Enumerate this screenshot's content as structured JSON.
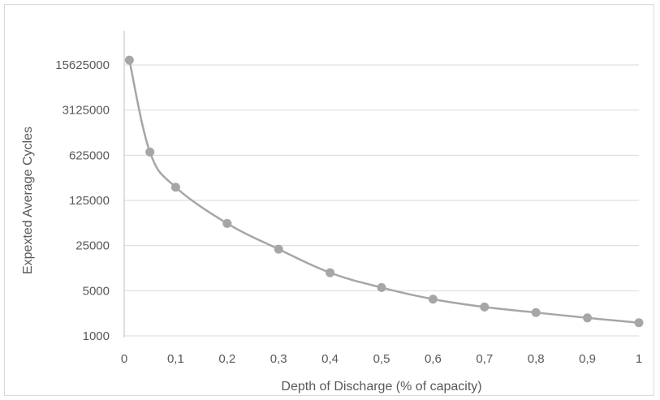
{
  "chart_data": {
    "type": "line",
    "title": "",
    "xlabel": "Depth of Discharge (% of capacity)",
    "ylabel": "Expexted Average Cycles",
    "y_scale": "log",
    "x_ticks": [
      "0",
      "0,1",
      "0,2",
      "0,3",
      "0,4",
      "0,5",
      "0,6",
      "0,7",
      "0,8",
      "0,9",
      "1"
    ],
    "x_tick_values": [
      0,
      0.1,
      0.2,
      0.3,
      0.4,
      0.5,
      0.6,
      0.7,
      0.8,
      0.9,
      1
    ],
    "y_ticks": [
      "1000",
      "5000",
      "25000",
      "125000",
      "625000",
      "3125000",
      "15625000"
    ],
    "y_tick_values": [
      1000,
      5000,
      25000,
      125000,
      625000,
      3125000,
      15625000
    ],
    "xlim": [
      0,
      1
    ],
    "ylim": [
      1000,
      15625000
    ],
    "grid": "horizontal",
    "legend": "none",
    "series": [
      {
        "x": [
          0.01,
          0.05,
          0.1,
          0.2,
          0.3,
          0.4,
          0.5,
          0.6,
          0.7,
          0.8,
          0.9,
          1.0
        ],
        "y": [
          18500000,
          700000,
          200000,
          55000,
          22000,
          9500,
          5600,
          3700,
          2800,
          2300,
          1900,
          1600
        ]
      }
    ],
    "colors": {
      "line": "#a6a6a6",
      "marker": "#a6a6a6",
      "grid": "#d9d9d9",
      "axis": "#bfbfbf",
      "text": "#595959"
    }
  }
}
